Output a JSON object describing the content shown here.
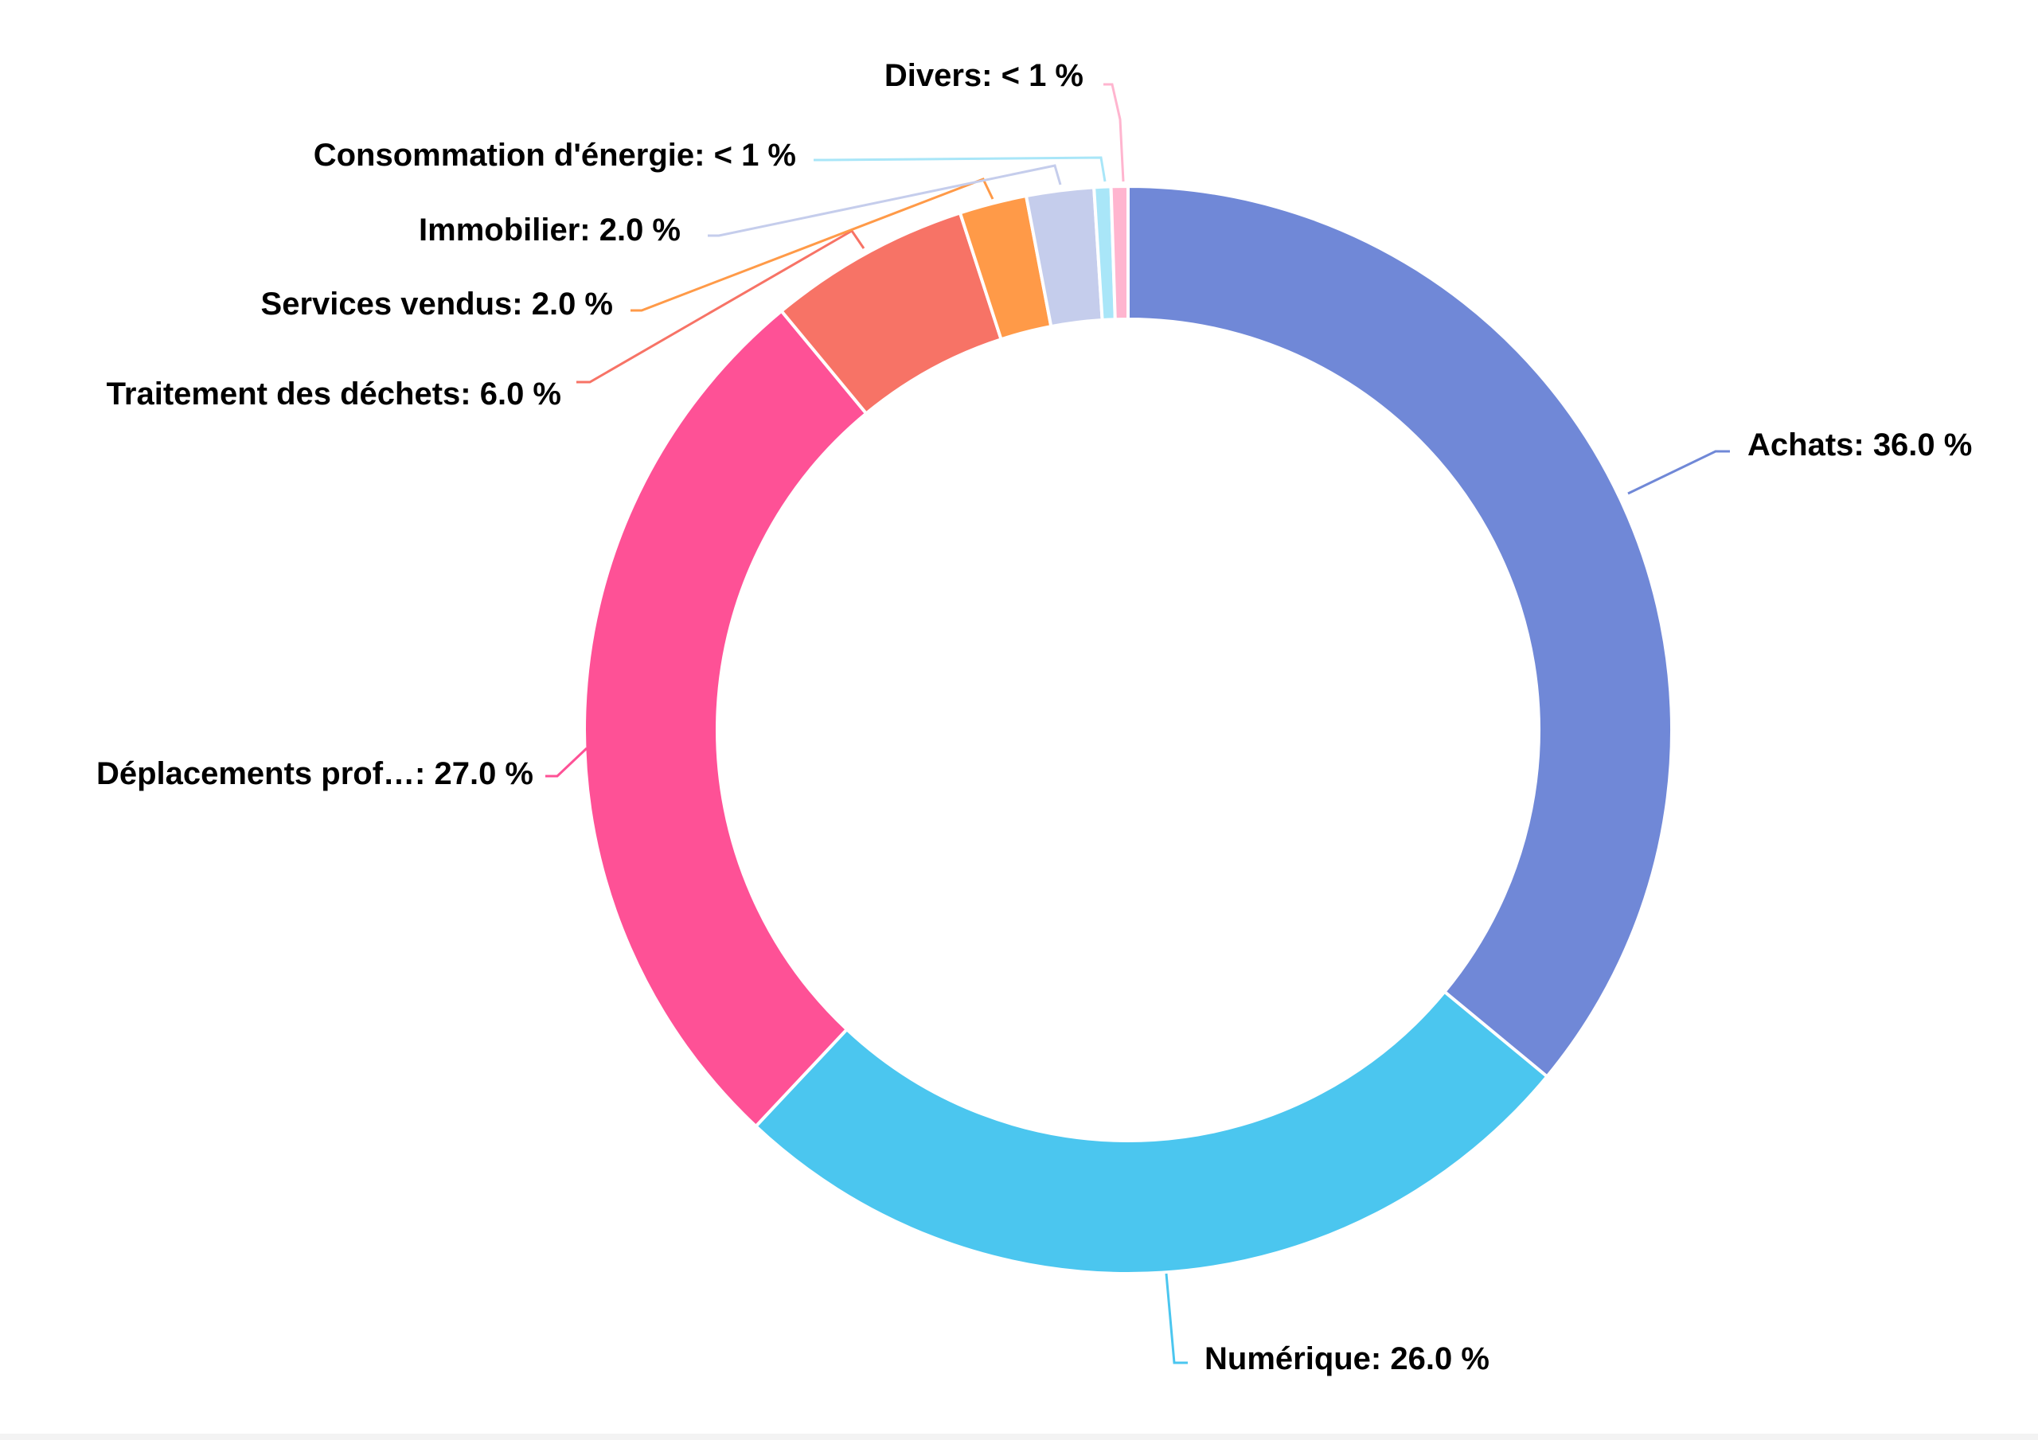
{
  "chart_data": {
    "type": "pie",
    "donut": true,
    "title": "",
    "start_angle_deg": 0,
    "direction": "clockwise",
    "slices": [
      {
        "name": "Achats",
        "label": "Achats: 36.0 %",
        "value": 36.0,
        "color": "#7088d7"
      },
      {
        "name": "Numérique",
        "label": "Numérique: 26.0 %",
        "value": 26.0,
        "color": "#4bc6ef"
      },
      {
        "name": "Déplacements prof…",
        "label": "Déplacements prof…: 27.0 %",
        "value": 27.0,
        "color": "#fe5196"
      },
      {
        "name": "Traitement des déchets",
        "label": "Traitement des déchets: 6.0 %",
        "value": 6.0,
        "color": "#f77366"
      },
      {
        "name": "Services vendus",
        "label": "Services vendus: 2.0 %",
        "value": 2.0,
        "color": "#ff9a48"
      },
      {
        "name": "Immobilier",
        "label": "Immobilier: 2.0 %",
        "value": 2.0,
        "color": "#c5cdec"
      },
      {
        "name": "Consommation d'énergie",
        "label": "Consommation d'énergie: < 1 %",
        "value": 0.5,
        "color": "#a9e6f8"
      },
      {
        "name": "Divers",
        "label": "Divers: < 1 %",
        "value": 0.5,
        "color": "#ffb5cf"
      }
    ]
  }
}
